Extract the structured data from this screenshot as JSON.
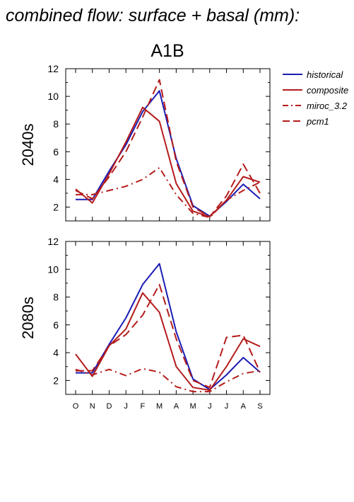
{
  "page_title": "combined flow: surface + basal (mm):",
  "scenario_title": "A1B",
  "colors": {
    "historical": "#1c1cb4",
    "models": "#b41c1c"
  },
  "legend": [
    {
      "label": "historical",
      "style": "solid",
      "color": "#1c1cb4"
    },
    {
      "label": "composite",
      "style": "solid",
      "color": "#b41c1c"
    },
    {
      "label": "miroc_3.2",
      "style": "dashdot",
      "color": "#b41c1c"
    },
    {
      "label": "pcm1",
      "style": "dashed",
      "color": "#b41c1c"
    }
  ],
  "chart_data": [
    {
      "type": "line",
      "ylabel": "2040s",
      "categories": [
        "O",
        "N",
        "D",
        "J",
        "F",
        "M",
        "A",
        "M",
        "J",
        "J",
        "A",
        "S"
      ],
      "ylim": [
        1,
        12
      ],
      "yticks": [
        2,
        4,
        6,
        8,
        10,
        12
      ],
      "series": [
        {
          "name": "historical",
          "style": "solid",
          "color": "#1c1cb4",
          "values": [
            2.55,
            2.55,
            4.6,
            6.5,
            8.9,
            10.4,
            5.5,
            2.1,
            1.35,
            2.4,
            3.65,
            2.6
          ]
        },
        {
          "name": "composite",
          "style": "solid",
          "color": "#b41c1c",
          "values": [
            3.3,
            2.3,
            4.4,
            6.7,
            9.2,
            8.2,
            3.7,
            1.7,
            1.3,
            2.5,
            4.2,
            3.8
          ]
        },
        {
          "name": "miroc_3.2",
          "style": "dashdot",
          "color": "#b41c1c",
          "values": [
            2.9,
            2.9,
            3.2,
            3.5,
            4.0,
            4.85,
            2.9,
            1.55,
            1.25,
            2.5,
            3.2,
            3.8
          ]
        },
        {
          "name": "pcm1",
          "style": "dashed",
          "color": "#b41c1c",
          "values": [
            3.2,
            2.6,
            4.2,
            6.0,
            8.5,
            11.2,
            5.3,
            2.0,
            1.3,
            2.8,
            5.1,
            3.0
          ]
        }
      ]
    },
    {
      "type": "line",
      "ylabel": "2080s",
      "categories": [
        "O",
        "N",
        "D",
        "J",
        "F",
        "M",
        "A",
        "M",
        "J",
        "J",
        "A",
        "S"
      ],
      "ylim": [
        1,
        12
      ],
      "yticks": [
        2,
        4,
        6,
        8,
        10,
        12
      ],
      "series": [
        {
          "name": "historical",
          "style": "solid",
          "color": "#1c1cb4",
          "values": [
            2.55,
            2.55,
            4.6,
            6.5,
            8.9,
            10.4,
            5.5,
            2.1,
            1.35,
            2.4,
            3.65,
            2.6
          ]
        },
        {
          "name": "composite",
          "style": "solid",
          "color": "#b41c1c",
          "values": [
            3.9,
            2.3,
            4.5,
            5.7,
            8.3,
            6.9,
            3.0,
            1.5,
            1.3,
            3.0,
            5.0,
            4.45
          ]
        },
        {
          "name": "miroc_3.2",
          "style": "dashdot",
          "color": "#b41c1c",
          "values": [
            2.8,
            2.4,
            2.8,
            2.35,
            2.85,
            2.6,
            1.55,
            1.2,
            1.2,
            1.9,
            2.5,
            2.7
          ]
        },
        {
          "name": "pcm1",
          "style": "dashed",
          "color": "#b41c1c",
          "values": [
            2.7,
            2.7,
            4.5,
            5.3,
            6.7,
            8.9,
            5.0,
            2.0,
            1.5,
            5.1,
            5.25,
            2.6
          ]
        }
      ]
    }
  ]
}
